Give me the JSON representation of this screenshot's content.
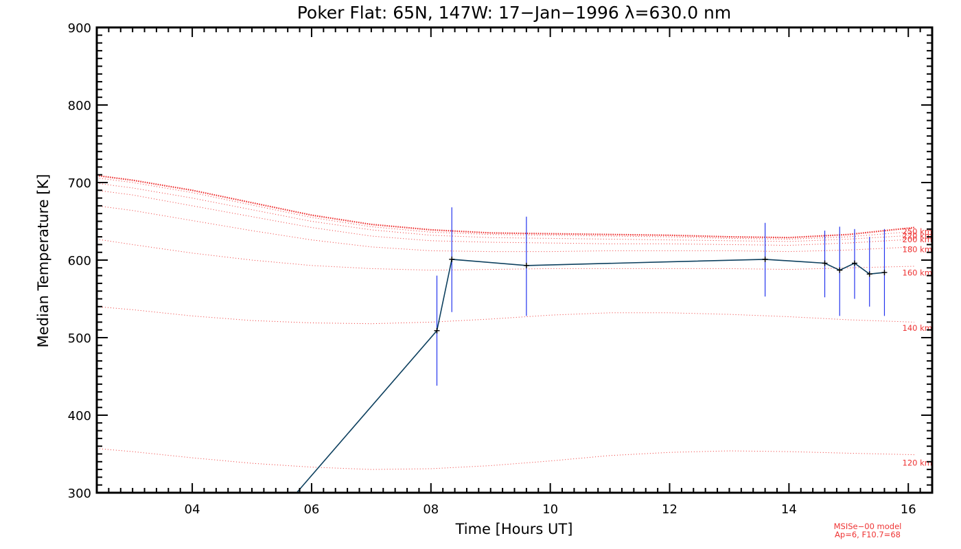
{
  "chart_data": {
    "type": "line",
    "title": "Poker Flat: 65N, 147W: 17−Jan−1996 λ=630.0 nm",
    "xlabel": "Time [Hours UT]",
    "ylabel": "Median Temperature [K]",
    "xlim": [
      2.4,
      16.4
    ],
    "ylim": [
      300,
      900
    ],
    "x_ticks": [
      4,
      6,
      8,
      10,
      12,
      14,
      16
    ],
    "x_tick_labels": [
      "04",
      "06",
      "08",
      "10",
      "12",
      "14",
      "16"
    ],
    "y_ticks": [
      300,
      400,
      500,
      600,
      700,
      800,
      900
    ],
    "y_tick_labels": [
      "300",
      "400",
      "500",
      "600",
      "700",
      "800",
      "900"
    ],
    "grid": false,
    "colors": {
      "data": "#0c3f5e",
      "errorbar": "#2233ee",
      "model": "#ee3333",
      "axes": "#000000"
    },
    "series": [
      {
        "x": [
          5.75,
          8.1,
          8.35,
          9.6,
          13.6,
          14.6,
          14.85,
          15.1,
          15.35,
          15.6
        ],
        "y": [
          300,
          509,
          601,
          593,
          601,
          596,
          587,
          596,
          582,
          584
        ],
        "yerr_low": [
          null,
          438,
          533,
          528,
          553,
          552,
          528,
          550,
          540,
          528
        ],
        "yerr_high": [
          null,
          580,
          668,
          656,
          648,
          638,
          643,
          640,
          630,
          640
        ]
      }
    ],
    "model": {
      "x": [
        2.4,
        3,
        4,
        5,
        6,
        7,
        8,
        9,
        10,
        11,
        12,
        13,
        14,
        15,
        16.1
      ],
      "curves": [
        {
          "label": "120 km",
          "y": [
            357,
            353,
            345,
            338,
            333,
            330,
            331,
            335,
            341,
            348,
            352,
            354,
            353,
            351,
            349
          ]
        },
        {
          "label": "140 km",
          "y": [
            540,
            536,
            528,
            522,
            519,
            518,
            520,
            524,
            529,
            532,
            532,
            530,
            527,
            523,
            520
          ]
        },
        {
          "label": "160 km",
          "y": [
            627,
            620,
            609,
            600,
            593,
            589,
            587,
            588,
            589,
            589,
            589,
            589,
            588,
            590,
            592
          ]
        },
        {
          "label": "180 km",
          "y": [
            670,
            664,
            651,
            638,
            626,
            617,
            612,
            611,
            611,
            612,
            612,
            612,
            611,
            613,
            617
          ]
        },
        {
          "label": "200 km",
          "y": [
            690,
            684,
            670,
            656,
            642,
            631,
            625,
            623,
            622,
            621,
            621,
            620,
            619,
            622,
            627
          ]
        },
        {
          "label": "220 km",
          "y": [
            699,
            693,
            680,
            665,
            650,
            639,
            632,
            629,
            628,
            627,
            626,
            625,
            624,
            627,
            632
          ]
        },
        {
          "label": "250 km",
          "y": [
            706,
            700,
            687,
            671,
            655,
            643,
            636,
            633,
            632,
            631,
            630,
            628,
            627,
            630,
            637
          ]
        },
        {
          "label": "",
          "y": [
            709,
            703,
            690,
            674,
            658,
            646,
            639,
            635,
            634,
            633,
            632,
            630,
            629,
            633,
            642
          ]
        }
      ],
      "label_anchor_x": 15.9,
      "label_positions": {
        "120 km": 335,
        "140 km": 509,
        "160 km": 580,
        "180 km": 610,
        "200 km": 623,
        "220 km": 628,
        "250 km": 633
      }
    },
    "footnote": [
      "MSISe−00 model",
      "Ap=6, F10.7=68"
    ]
  }
}
